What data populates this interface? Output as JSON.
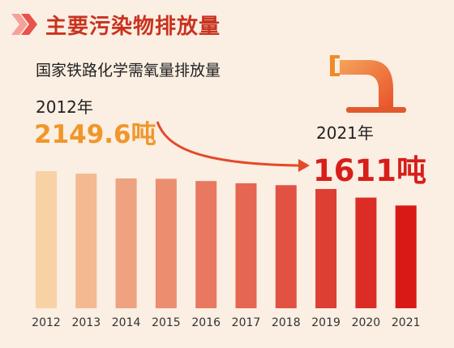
{
  "header": {
    "title": "主要污染物排放量"
  },
  "subtitle": "国家铁路化学需氧量排放量",
  "start": {
    "year": "2012年",
    "value": "2149.6吨"
  },
  "end": {
    "year": "2021年",
    "value": "1611吨"
  },
  "icon": "faucet-icon",
  "colors": {
    "start": "#f7d2a4",
    "end": "#d81a17"
  },
  "chart_data": {
    "type": "bar",
    "categories": [
      "2012",
      "2013",
      "2014",
      "2015",
      "2016",
      "2017",
      "2018",
      "2019",
      "2020",
      "2021"
    ],
    "values": [
      2149.6,
      2110,
      2035,
      2030,
      1995,
      1960,
      1930,
      1870,
      1735,
      1611
    ],
    "title": "国家铁路化学需氧量排放量",
    "xlabel": "",
    "ylabel": "",
    "grid": false,
    "annotations": [
      "2012年 2149.6吨",
      "2021年 1611吨"
    ]
  }
}
